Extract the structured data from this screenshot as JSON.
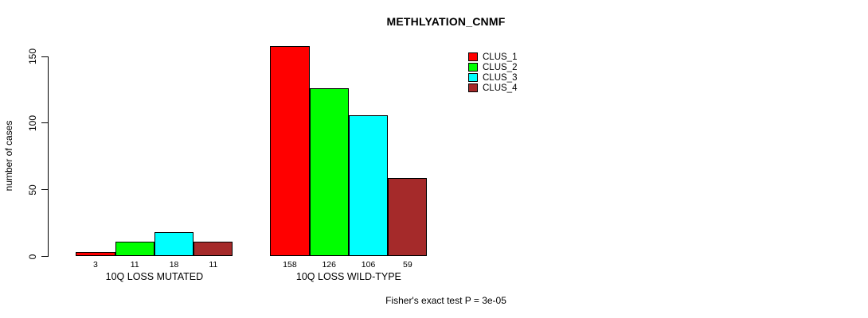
{
  "chart_data": {
    "type": "bar",
    "title": "METHLYATION_CNMF",
    "xlabel": "",
    "ylabel": "number of cases",
    "categories": [
      "10Q LOSS MUTATED",
      "10Q LOSS WILD-TYPE"
    ],
    "series": [
      {
        "name": "CLUS_1",
        "color": "#ff0000",
        "values": [
          3,
          158
        ]
      },
      {
        "name": "CLUS_2",
        "color": "#00ff00",
        "values": [
          11,
          126
        ]
      },
      {
        "name": "CLUS_3",
        "color": "#00ffff",
        "values": [
          18,
          106
        ]
      },
      {
        "name": "CLUS_4",
        "color": "#a52a2a",
        "values": [
          11,
          59
        ]
      }
    ],
    "yticks": [
      0,
      50,
      100,
      150
    ],
    "ylim": [
      0,
      165
    ],
    "grid": false,
    "bar_borders": true,
    "bar_value_labels": true,
    "legend_position": "top-right",
    "annotation": "Fisher's exact test P = 3e-05"
  }
}
